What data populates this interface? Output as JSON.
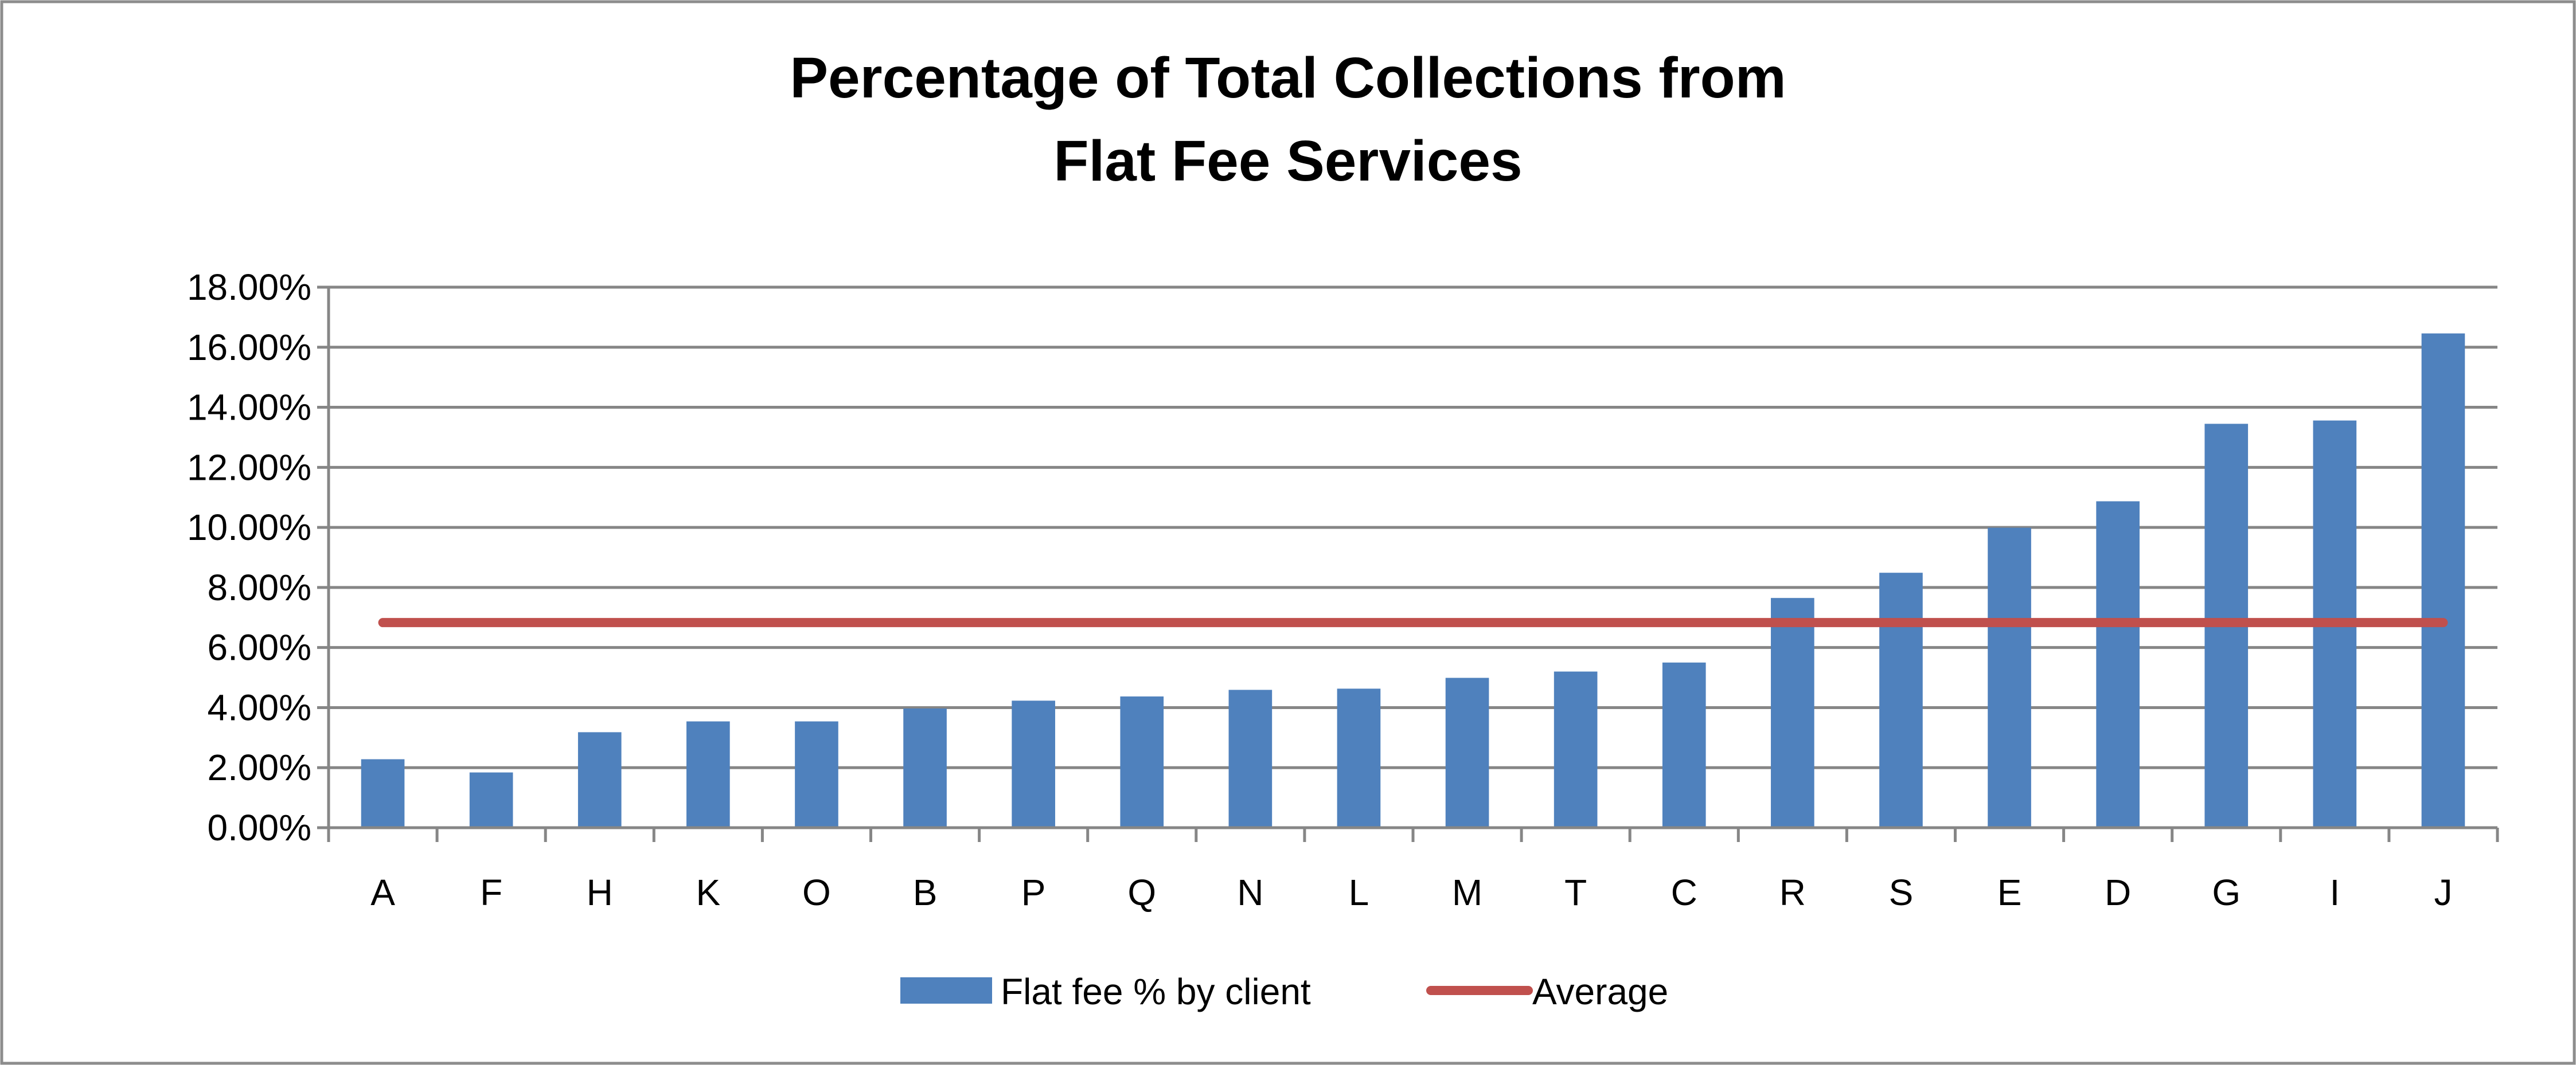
{
  "chart_data": {
    "type": "bar",
    "title": [
      "Percentage of Total Collections from",
      "Flat Fee Services"
    ],
    "xlabel": "",
    "ylabel": "",
    "ylim": [
      0,
      18
    ],
    "yticks": [
      "0.00%",
      "2.00%",
      "4.00%",
      "6.00%",
      "8.00%",
      "10.00%",
      "12.00%",
      "14.00%",
      "16.00%",
      "18.00%"
    ],
    "grid": true,
    "legend_position": "bottom",
    "categories": [
      "A",
      "F",
      "H",
      "K",
      "O",
      "B",
      "P",
      "Q",
      "N",
      "L",
      "M",
      "T",
      "C",
      "R",
      "S",
      "E",
      "D",
      "G",
      "I",
      "J"
    ],
    "series": [
      {
        "name": "Flat fee % by client",
        "type": "bar",
        "color": "#4F81BD",
        "values": [
          2.28,
          1.84,
          3.18,
          3.54,
          3.54,
          3.97,
          4.23,
          4.37,
          4.59,
          4.63,
          4.99,
          5.2,
          5.5,
          7.65,
          8.49,
          9.99,
          10.87,
          13.45,
          13.56,
          16.46
        ]
      },
      {
        "name": "Average",
        "type": "line",
        "color": "#C0504D",
        "value": 6.83
      }
    ]
  }
}
